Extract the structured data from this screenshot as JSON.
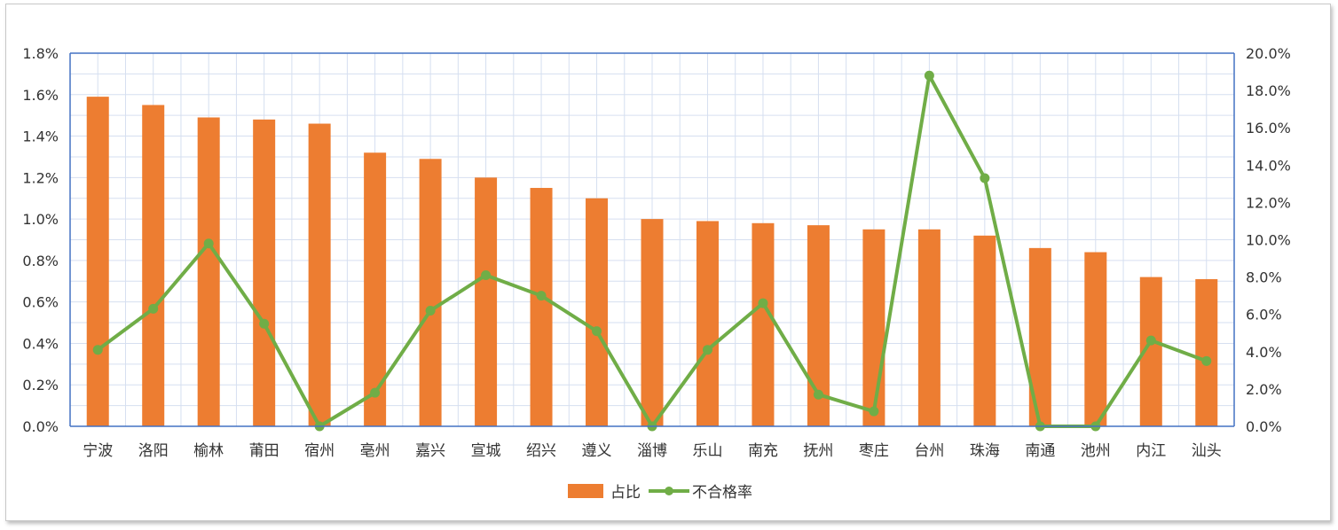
{
  "chart_data": {
    "type": "bar+line",
    "categories": [
      "宁波",
      "洛阳",
      "榆林",
      "莆田",
      "宿州",
      "亳州",
      "嘉兴",
      "宣城",
      "绍兴",
      "遵义",
      "淄博",
      "乐山",
      "南充",
      "抚州",
      "枣庄",
      "台州",
      "珠海",
      "南通",
      "池州",
      "内江",
      "汕头"
    ],
    "series": [
      {
        "name": "占比",
        "type": "bar",
        "axis": "left",
        "color": "#ED7D31",
        "values": [
          1.59,
          1.55,
          1.49,
          1.48,
          1.46,
          1.32,
          1.29,
          1.2,
          1.15,
          1.1,
          1.0,
          0.99,
          0.98,
          0.97,
          0.95,
          0.95,
          0.92,
          0.86,
          0.84,
          0.72,
          0.71
        ]
      },
      {
        "name": "不合格率",
        "type": "line",
        "axis": "right",
        "color": "#70AD47",
        "values": [
          4.1,
          6.3,
          9.8,
          5.5,
          0.0,
          1.8,
          6.2,
          8.1,
          7.0,
          5.1,
          0.0,
          4.1,
          6.6,
          1.7,
          0.8,
          18.8,
          13.3,
          0.0,
          0.0,
          4.6,
          3.5
        ]
      }
    ],
    "y_left": {
      "min": 0,
      "max": 1.8,
      "step": 0.2,
      "ticks": [
        "0.0%",
        "0.2%",
        "0.4%",
        "0.6%",
        "0.8%",
        "1.0%",
        "1.2%",
        "1.4%",
        "1.6%",
        "1.8%"
      ]
    },
    "y_right": {
      "min": 0,
      "max": 20,
      "step": 2,
      "ticks": [
        "0.0%",
        "2.0%",
        "4.0%",
        "6.0%",
        "8.0%",
        "10.0%",
        "12.0%",
        "14.0%",
        "16.0%",
        "18.0%",
        "20.0%"
      ]
    },
    "grid": true,
    "legend_position": "bottom",
    "legend": [
      "占比",
      "不合格率"
    ]
  }
}
